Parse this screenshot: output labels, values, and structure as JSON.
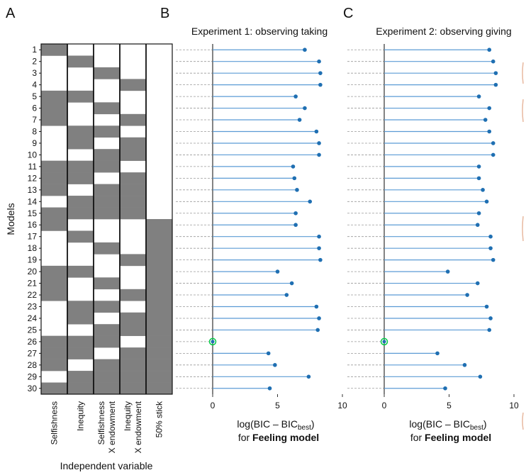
{
  "panels": {
    "a": "A",
    "b": "B",
    "c": "C"
  },
  "chart_data": [
    {
      "type": "heatmap",
      "panel": "A",
      "ylabel": "Models",
      "xlabel": "Independent variable",
      "rows": [
        "1",
        "2",
        "3",
        "4",
        "5",
        "6",
        "7",
        "8",
        "9",
        "10",
        "11",
        "12",
        "13",
        "14",
        "15",
        "16",
        "17",
        "18",
        "19",
        "20",
        "21",
        "22",
        "23",
        "24",
        "25",
        "26",
        "27",
        "28",
        "29",
        "30"
      ],
      "columns": [
        {
          "lines": [
            "Selfishness"
          ]
        },
        {
          "lines": [
            "Inequity"
          ]
        },
        {
          "lines": [
            "Selfishness",
            "X endowment"
          ]
        },
        {
          "lines": [
            "Inequity",
            "X endowment"
          ]
        },
        {
          "lines": [
            "50% stick"
          ]
        }
      ],
      "matrix": [
        [
          1,
          0,
          0,
          0,
          0
        ],
        [
          0,
          1,
          0,
          0,
          0
        ],
        [
          0,
          0,
          1,
          0,
          0
        ],
        [
          0,
          0,
          0,
          1,
          0
        ],
        [
          1,
          1,
          0,
          0,
          0
        ],
        [
          1,
          0,
          1,
          0,
          0
        ],
        [
          1,
          0,
          0,
          1,
          0
        ],
        [
          0,
          1,
          1,
          0,
          0
        ],
        [
          0,
          1,
          0,
          1,
          0
        ],
        [
          0,
          0,
          1,
          1,
          0
        ],
        [
          1,
          1,
          1,
          0,
          0
        ],
        [
          1,
          1,
          0,
          1,
          0
        ],
        [
          1,
          0,
          1,
          1,
          0
        ],
        [
          0,
          1,
          1,
          1,
          0
        ],
        [
          1,
          1,
          1,
          1,
          0
        ],
        [
          1,
          0,
          0,
          0,
          1
        ],
        [
          0,
          1,
          0,
          0,
          1
        ],
        [
          0,
          0,
          1,
          0,
          1
        ],
        [
          0,
          0,
          0,
          1,
          1
        ],
        [
          1,
          1,
          0,
          0,
          1
        ],
        [
          1,
          0,
          1,
          0,
          1
        ],
        [
          1,
          0,
          0,
          1,
          1
        ],
        [
          0,
          1,
          1,
          0,
          1
        ],
        [
          0,
          1,
          0,
          1,
          1
        ],
        [
          0,
          0,
          1,
          1,
          1
        ],
        [
          1,
          1,
          1,
          0,
          1
        ],
        [
          1,
          1,
          0,
          1,
          1
        ],
        [
          1,
          0,
          1,
          1,
          1
        ],
        [
          0,
          1,
          1,
          1,
          1
        ],
        [
          1,
          1,
          1,
          1,
          1
        ]
      ],
      "filled_color": "#808080",
      "empty_color": "#ffffff"
    },
    {
      "type": "lollipop",
      "panel": "B",
      "title": "Experiment 1: observing taking",
      "xlabel_main": "log(BIC – BIC",
      "xlabel_sub": "best",
      "xlabel_close": ")",
      "xlabel_line2_prefix": "for ",
      "xlabel_line2_bold": "Feeling model",
      "xlim": [
        0,
        10
      ],
      "xticks": [
        0,
        5,
        10
      ],
      "values": [
        7.1,
        8.2,
        8.3,
        8.3,
        6.4,
        7.1,
        6.7,
        8.0,
        8.2,
        8.2,
        6.2,
        6.3,
        6.5,
        7.5,
        6.4,
        6.4,
        8.2,
        8.2,
        8.3,
        5.0,
        6.1,
        5.7,
        8.0,
        8.2,
        8.1,
        0,
        4.3,
        4.8,
        7.4,
        4.4
      ],
      "best_row": 26,
      "stem_color": "#5b9bd5",
      "dot_color": "#1f6fb2",
      "best_color": "#00cc44"
    },
    {
      "type": "lollipop",
      "panel": "C",
      "title": "Experiment 2: observing giving",
      "xlabel_main": "log(BIC – BIC",
      "xlabel_sub": "best",
      "xlabel_close": ")",
      "xlabel_line2_prefix": "for ",
      "xlabel_line2_bold": "Feeling model",
      "xlim": [
        0,
        10
      ],
      "xticks": [
        0,
        5,
        10
      ],
      "values": [
        8.1,
        8.4,
        8.6,
        8.6,
        7.3,
        8.1,
        7.8,
        8.1,
        8.4,
        8.4,
        7.3,
        7.3,
        7.6,
        7.9,
        7.3,
        7.2,
        8.2,
        8.2,
        8.4,
        4.9,
        7.2,
        6.4,
        7.9,
        8.2,
        8.1,
        0,
        4.1,
        6.2,
        7.4,
        4.7
      ],
      "best_row": 26,
      "stem_color": "#5b9bd5",
      "dot_color": "#1f6fb2",
      "best_color": "#00cc44"
    }
  ]
}
